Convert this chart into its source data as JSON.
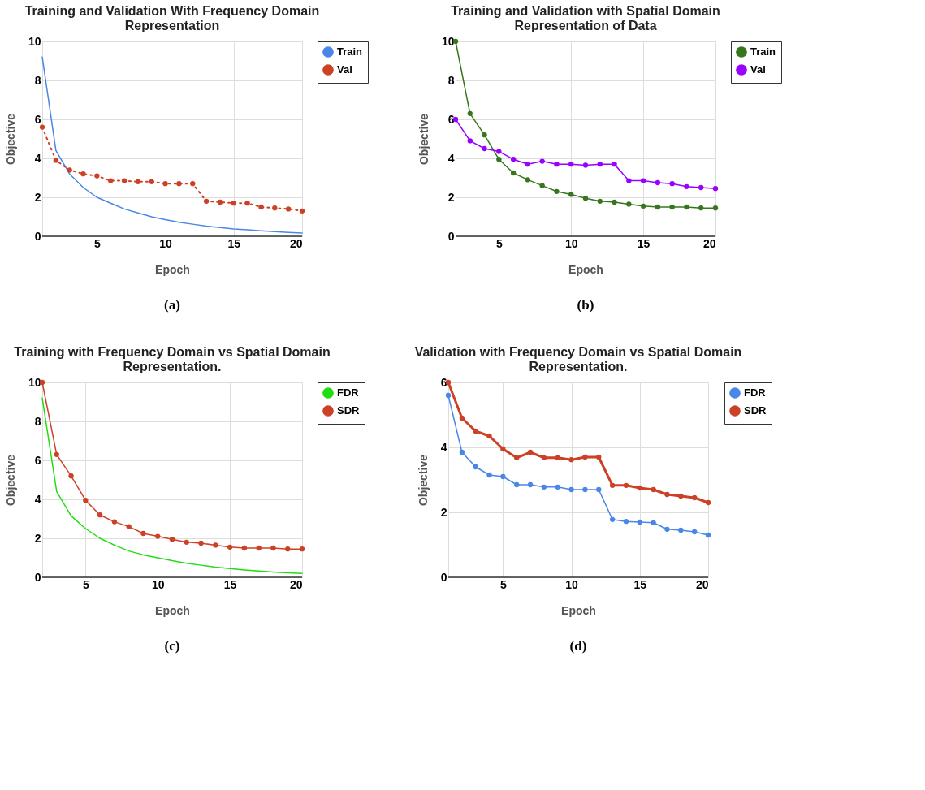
{
  "chart_data": [
    {
      "type": "line",
      "title": "Training and Validation With  Frequency Domain Representation",
      "xlabel": "Epoch",
      "ylabel": "Objective",
      "xlim": [
        1,
        20
      ],
      "xticks": [
        5,
        10,
        15,
        20
      ],
      "ylim": [
        0,
        10
      ],
      "yticks": [
        0,
        2,
        4,
        6,
        8,
        10
      ],
      "grid": true,
      "legend": "top right",
      "annotations": [
        "(a)"
      ],
      "x": [
        1,
        2,
        3,
        4,
        5,
        6,
        7,
        8,
        9,
        10,
        11,
        12,
        13,
        14,
        15,
        16,
        17,
        18,
        19,
        20
      ],
      "series": [
        {
          "name": "Train",
          "color": "#4a86e8",
          "marker": "none",
          "line_style": "solid",
          "values": [
            9.2,
            4.4,
            3.2,
            2.5,
            2.0,
            1.7,
            1.4,
            1.2,
            1.0,
            0.85,
            0.72,
            0.62,
            0.52,
            0.45,
            0.38,
            0.33,
            0.28,
            0.24,
            0.2,
            0.17
          ]
        },
        {
          "name": "Val",
          "color": "#cc4125",
          "marker": "circle",
          "line_style": "dotted",
          "values": [
            5.6,
            3.9,
            3.4,
            3.2,
            3.1,
            2.85,
            2.85,
            2.8,
            2.8,
            2.7,
            2.7,
            2.7,
            1.8,
            1.75,
            1.7,
            1.7,
            1.5,
            1.45,
            1.4,
            1.3
          ]
        }
      ]
    },
    {
      "type": "line",
      "title": "Training  and Validation with Spatial Domain Representation of Data",
      "xlabel": "Epoch",
      "ylabel": "Objective",
      "xlim": [
        2,
        20
      ],
      "xticks": [
        5,
        10,
        15,
        20
      ],
      "ylim": [
        0,
        10
      ],
      "yticks": [
        0,
        2,
        4,
        6,
        8,
        10
      ],
      "grid": true,
      "legend": "top right",
      "annotations": [
        "(b)"
      ],
      "x": [
        2,
        3,
        4,
        5,
        6,
        7,
        8,
        9,
        10,
        11,
        12,
        13,
        14,
        15,
        16,
        17,
        18,
        19,
        20
      ],
      "series": [
        {
          "name": "Train",
          "color": "#38761d",
          "marker": "circle",
          "line_style": "solid",
          "values": [
            10,
            6.3,
            5.2,
            3.95,
            3.25,
            2.9,
            2.6,
            2.3,
            2.15,
            1.95,
            1.8,
            1.75,
            1.65,
            1.55,
            1.5,
            1.5,
            1.5,
            1.45,
            1.45
          ]
        },
        {
          "name": "Val",
          "color": "#9900ff",
          "marker": "circle",
          "line_style": "solid",
          "values": [
            6.0,
            4.9,
            4.5,
            4.35,
            3.95,
            3.7,
            3.85,
            3.7,
            3.7,
            3.65,
            3.7,
            3.7,
            2.85,
            2.85,
            2.75,
            2.7,
            2.55,
            2.5,
            2.45
          ]
        }
      ]
    },
    {
      "type": "line",
      "title": "Training with Frequency Domain vs Spatial Domain Representation.",
      "xlabel": "Epoch",
      "ylabel": "Objective",
      "xlim": [
        2,
        20
      ],
      "xticks": [
        5,
        10,
        15,
        20
      ],
      "ylim": [
        0,
        10
      ],
      "yticks": [
        0,
        2,
        4,
        6,
        8,
        10
      ],
      "grid": true,
      "legend": "top right",
      "annotations": [
        "(c)"
      ],
      "x": [
        2,
        3,
        4,
        5,
        6,
        7,
        8,
        9,
        10,
        11,
        12,
        13,
        14,
        15,
        16,
        17,
        18,
        19,
        20
      ],
      "series": [
        {
          "name": "FDR",
          "color": "#22dd11",
          "marker": "none",
          "line_style": "solid",
          "values": [
            9.2,
            4.4,
            3.15,
            2.5,
            2.0,
            1.65,
            1.35,
            1.15,
            1.0,
            0.85,
            0.72,
            0.62,
            0.52,
            0.45,
            0.38,
            0.32,
            0.27,
            0.23,
            0.2
          ]
        },
        {
          "name": "SDR",
          "color": "#cc4125",
          "marker": "circle",
          "line_style": "solid",
          "values": [
            10,
            6.3,
            5.2,
            3.95,
            3.2,
            2.85,
            2.6,
            2.25,
            2.1,
            1.95,
            1.8,
            1.75,
            1.65,
            1.55,
            1.5,
            1.5,
            1.5,
            1.45,
            1.45
          ]
        }
      ]
    },
    {
      "type": "line",
      "title": "Validation with Frequency Domain vs Spatial Domain Representation.",
      "xlabel": "Epoch",
      "ylabel": "Objective",
      "xlim": [
        1,
        20
      ],
      "xticks": [
        5,
        10,
        15,
        20
      ],
      "ylim": [
        0,
        6
      ],
      "yticks": [
        0,
        2,
        4,
        6
      ],
      "grid": true,
      "legend": "top right",
      "annotations": [
        "(d)"
      ],
      "x": [
        1,
        2,
        3,
        4,
        5,
        6,
        7,
        8,
        9,
        10,
        11,
        12,
        13,
        14,
        15,
        16,
        17,
        18,
        19,
        20
      ],
      "series": [
        {
          "name": "FDR",
          "color": "#4a86e8",
          "marker": "circle",
          "line_style": "solid",
          "values": [
            5.6,
            3.85,
            3.4,
            3.15,
            3.1,
            2.85,
            2.85,
            2.78,
            2.78,
            2.7,
            2.7,
            2.7,
            1.78,
            1.72,
            1.7,
            1.68,
            1.48,
            1.45,
            1.4,
            1.3
          ]
        },
        {
          "name": "SDR",
          "color": "#cc4125",
          "marker": "circle",
          "line_style": "solid",
          "values": [
            6.0,
            4.9,
            4.5,
            4.35,
            3.95,
            3.68,
            3.85,
            3.68,
            3.68,
            3.62,
            3.7,
            3.7,
            2.83,
            2.83,
            2.75,
            2.7,
            2.55,
            2.5,
            2.45,
            2.3
          ]
        }
      ]
    }
  ]
}
